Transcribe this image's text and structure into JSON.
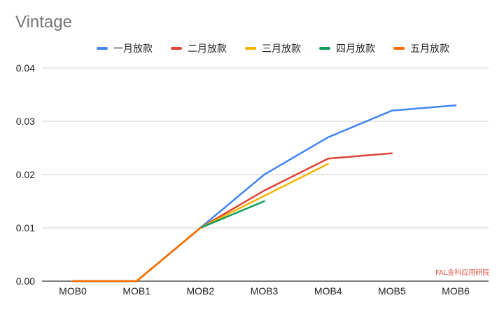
{
  "chart_data": {
    "type": "line",
    "title": "Vintage",
    "categories": [
      "MOB0",
      "MOB1",
      "MOB2",
      "MOB3",
      "MOB4",
      "MOB5",
      "MOB6"
    ],
    "ylim": [
      0,
      0.04
    ],
    "yticks": [
      "0.00",
      "0.01",
      "0.02",
      "0.03",
      "0.04"
    ],
    "grid": true,
    "legend_position": "top",
    "series": [
      {
        "name": "一月放款",
        "color": "#4285f4",
        "values": [
          0,
          0,
          0.01,
          0.02,
          0.027,
          0.032,
          0.033
        ]
      },
      {
        "name": "二月放款",
        "color": "#db4437",
        "values": [
          0,
          0,
          0.01,
          0.017,
          0.023,
          0.024,
          null
        ]
      },
      {
        "name": "三月放款",
        "color": "#f4b400",
        "values": [
          0,
          0,
          0.01,
          0.016,
          0.022,
          null,
          null
        ]
      },
      {
        "name": "四月放款",
        "color": "#0f9d58",
        "values": [
          0,
          0,
          0.01,
          0.015,
          null,
          null,
          null
        ]
      },
      {
        "name": "五月放款",
        "color": "#ff6d01",
        "values": [
          0,
          0,
          0.01,
          null,
          null,
          null,
          null
        ]
      }
    ]
  },
  "watermark": "FAL金科应用研院"
}
